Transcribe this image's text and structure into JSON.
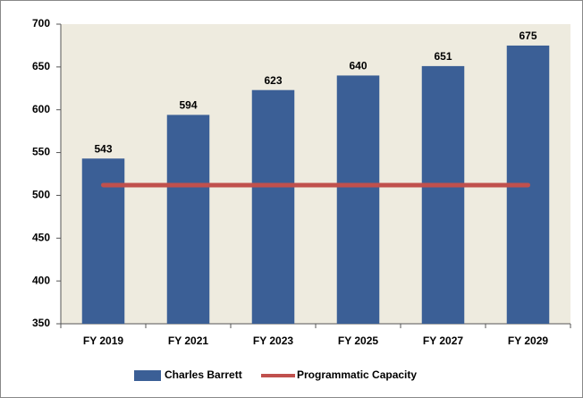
{
  "chart_data": {
    "type": "bar",
    "categories": [
      "FY 2019",
      "FY 2021",
      "FY 2023",
      "FY 2025",
      "FY 2027",
      "FY 2029"
    ],
    "series": [
      {
        "name": "Charles Barrett",
        "type": "bar",
        "color": "#3b5f96",
        "values": [
          543,
          594,
          623,
          640,
          651,
          675
        ]
      },
      {
        "name": "Programmatic Capacity",
        "type": "line",
        "color": "#c0504d",
        "values": [
          512,
          512,
          512,
          512,
          512,
          512
        ]
      }
    ],
    "ylim": [
      350,
      700
    ],
    "yticks": [
      350,
      400,
      450,
      500,
      550,
      600,
      650,
      700
    ],
    "grid": false,
    "legend": "bottom",
    "plot_background": "#eeebdf"
  }
}
